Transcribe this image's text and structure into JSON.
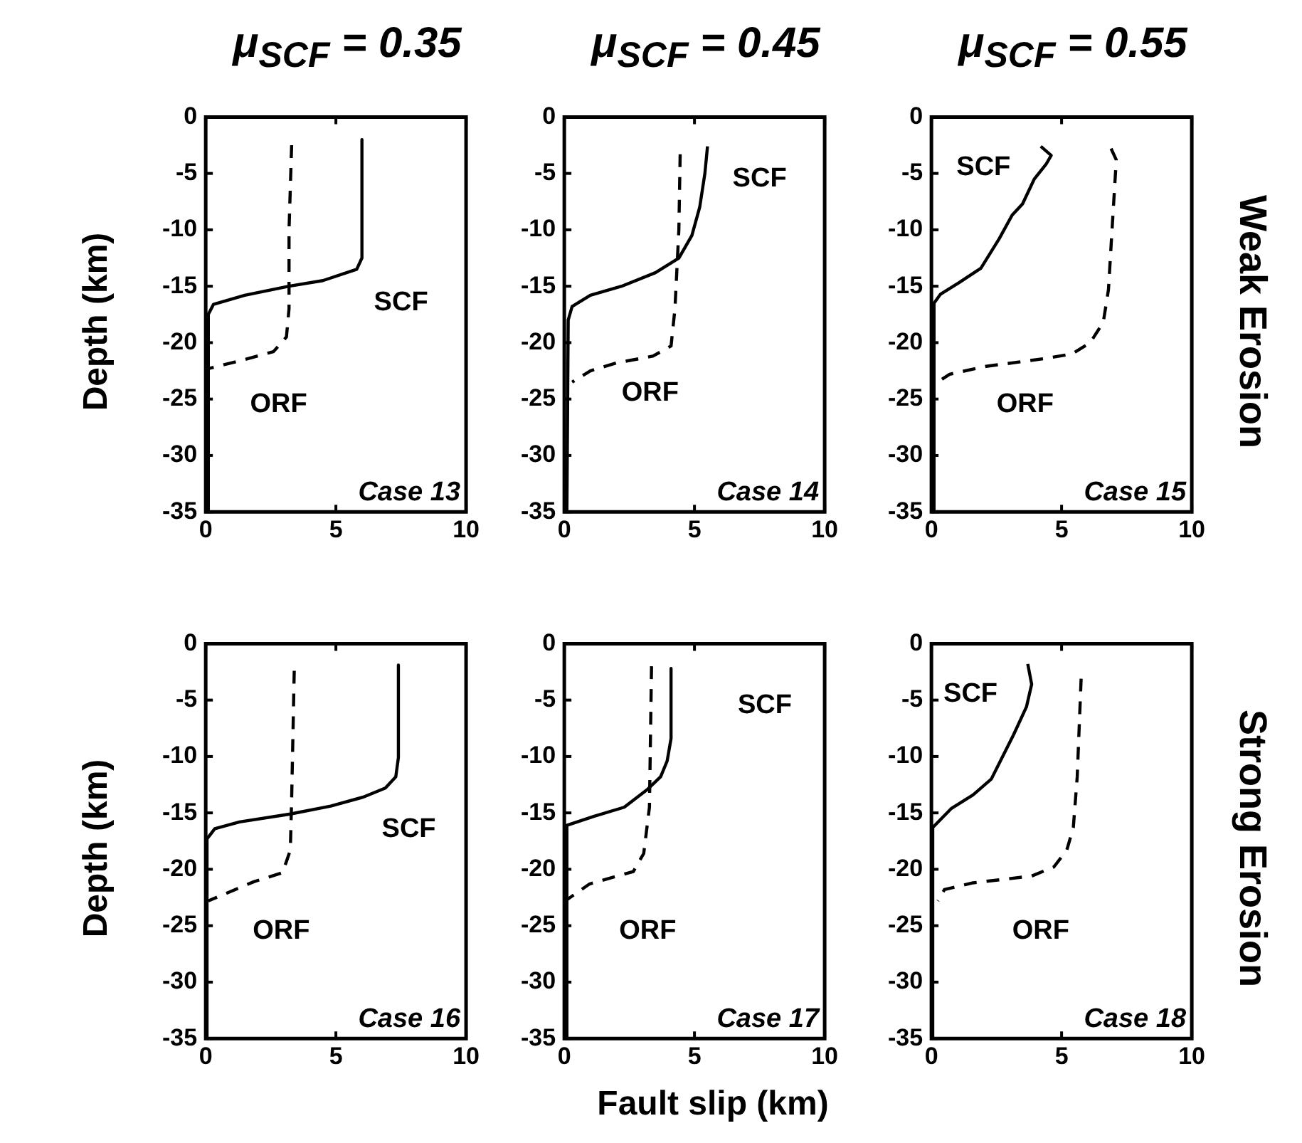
{
  "chart_data": [
    {
      "type": "line",
      "title": "μ$_{SCF}$ = 0.35",
      "ylabel": "Depth (km)",
      "annotations": [
        "Case 13"
      ],
      "marker": "none",
      "xlim": [
        0,
        10
      ],
      "ylim": [
        -35,
        0
      ],
      "xticks": [
        0,
        5,
        10
      ],
      "yticks": [
        -35,
        -30,
        -25,
        -20,
        -15,
        -10,
        -5,
        0
      ],
      "series": [
        {
          "name": "SCF",
          "color": "#000000",
          "line_style": "solid",
          "x": [
            6.0,
            6.0,
            5.8,
            4.5,
            3.2,
            1.5,
            0.3,
            0.1,
            0.1
          ],
          "values": [
            -2,
            -12.5,
            -13.5,
            -14.5,
            -15,
            -15.8,
            -16.6,
            -17.5,
            -35
          ]
        },
        {
          "name": "ORF",
          "color": "#000000",
          "line_style": "dashed",
          "x": [
            3.3,
            3.2,
            3.2,
            3.1,
            2.6,
            1.5,
            0.1
          ],
          "values": [
            -2.5,
            -10,
            -17,
            -19.5,
            -20.8,
            -21.5,
            -22.3
          ]
        }
      ]
    },
    {
      "type": "line",
      "title": "μ$_{SCF}$ = 0.45",
      "annotations": [
        "Case 14"
      ],
      "marker": "none",
      "xlim": [
        0,
        10
      ],
      "ylim": [
        -35,
        0
      ],
      "xticks": [
        0,
        5,
        10
      ],
      "yticks": [
        -35,
        -30,
        -25,
        -20,
        -15,
        -10,
        -5,
        0
      ],
      "series": [
        {
          "name": "SCF",
          "color": "#000000",
          "line_style": "solid",
          "x": [
            5.5,
            5.4,
            5.2,
            4.9,
            4.4,
            3.5,
            2.2,
            1,
            0.3,
            0.15,
            0.1
          ],
          "values": [
            -2.6,
            -5,
            -8,
            -10.5,
            -12.5,
            -13.8,
            -15,
            -15.8,
            -16.8,
            -18,
            -35
          ]
        },
        {
          "name": "ORF",
          "color": "#000000",
          "line_style": "dashed",
          "x": [
            4.45,
            4.4,
            4.25,
            4.1,
            3.4,
            2,
            1,
            0.3
          ],
          "values": [
            -3.3,
            -10,
            -17,
            -20.3,
            -21.2,
            -21.8,
            -22.5,
            -23.5
          ]
        }
      ]
    },
    {
      "type": "line",
      "title": "μ$_{SCF}$ = 0.55",
      "annotations": [
        "Case 15",
        "Weak Erosion"
      ],
      "marker": "none",
      "xlim": [
        0,
        10
      ],
      "ylim": [
        -35,
        0
      ],
      "xticks": [
        0,
        5,
        10
      ],
      "yticks": [
        -35,
        -30,
        -25,
        -20,
        -15,
        -10,
        -5,
        0
      ],
      "series": [
        {
          "name": "SCF",
          "color": "#000000",
          "line_style": "solid",
          "x": [
            4.2,
            4.6,
            4.4,
            3.95,
            3.5,
            3.1,
            2.6,
            1.9,
            1.05,
            0.35,
            0.1,
            0.1
          ],
          "values": [
            -2.6,
            -3.4,
            -4.2,
            -5.5,
            -7.7,
            -8.7,
            -10.8,
            -13.4,
            -14.7,
            -15.7,
            -16.5,
            -35
          ]
        },
        {
          "name": "ORF",
          "color": "#000000",
          "line_style": "dashed",
          "x": [
            6.9,
            7.1,
            6.95,
            6.8,
            6.6,
            6.1,
            5.4,
            4.4,
            2.1,
            0.7,
            0.1
          ],
          "values": [
            -2.8,
            -3.8,
            -9.5,
            -15.3,
            -18.2,
            -20,
            -21,
            -21.4,
            -22.1,
            -22.8,
            -23.7
          ]
        }
      ]
    },
    {
      "type": "line",
      "ylabel": "Depth (km)",
      "annotations": [
        "Case 16"
      ],
      "marker": "none",
      "xlim": [
        0,
        10
      ],
      "ylim": [
        -35,
        0
      ],
      "xticks": [
        0,
        5,
        10
      ],
      "yticks": [
        -35,
        -30,
        -25,
        -20,
        -15,
        -10,
        -5,
        0
      ],
      "series": [
        {
          "name": "SCF",
          "color": "#000000",
          "line_style": "solid",
          "x": [
            7.4,
            7.4,
            7.3,
            6.9,
            6.05,
            4.8,
            3.25,
            1.3,
            0.35,
            0.05,
            0.05
          ],
          "values": [
            -1.9,
            -10.1,
            -11.8,
            -12.8,
            -13.6,
            -14.4,
            -15.1,
            -15.8,
            -16.4,
            -17.3,
            -35
          ]
        },
        {
          "name": "ORF",
          "color": "#000000",
          "line_style": "dashed",
          "x": [
            3.4,
            3.3,
            3.25,
            2.95,
            1.85,
            0.1
          ],
          "values": [
            -2.4,
            -13.8,
            -18.3,
            -20.3,
            -21.1,
            -22.8
          ]
        }
      ]
    },
    {
      "type": "line",
      "xlabel": "Fault slip (km)",
      "annotations": [
        "Case 17"
      ],
      "marker": "none",
      "xlim": [
        0,
        10
      ],
      "ylim": [
        -35,
        0
      ],
      "xticks": [
        0,
        5,
        10
      ],
      "yticks": [
        -35,
        -30,
        -25,
        -20,
        -15,
        -10,
        -5,
        0
      ],
      "series": [
        {
          "name": "SCF",
          "color": "#000000",
          "line_style": "solid",
          "x": [
            4.1,
            4.1,
            3.95,
            3.7,
            3.2,
            2.3,
            1.15,
            0.1,
            0.1
          ],
          "values": [
            -2.2,
            -8.4,
            -10.4,
            -11.8,
            -12.9,
            -14.5,
            -15.3,
            -16.1,
            -35
          ]
        },
        {
          "name": "ORF",
          "color": "#000000",
          "line_style": "dashed",
          "x": [
            3.35,
            3.27,
            3.05,
            2.65,
            0.97,
            0.1
          ],
          "values": [
            -2,
            -14.5,
            -18.6,
            -20.2,
            -21.3,
            -22.7
          ]
        }
      ]
    },
    {
      "type": "line",
      "annotations": [
        "Case 18",
        "Strong Erosion"
      ],
      "marker": "none",
      "xlim": [
        0,
        10
      ],
      "ylim": [
        -35,
        0
      ],
      "xticks": [
        0,
        5,
        10
      ],
      "yticks": [
        -35,
        -30,
        -25,
        -20,
        -15,
        -10,
        -5,
        0
      ],
      "series": [
        {
          "name": "SCF",
          "color": "#000000",
          "line_style": "solid",
          "x": [
            3.7,
            3.85,
            3.65,
            3.15,
            2.8,
            2.3,
            1.6,
            0.77,
            0.05,
            0.05
          ],
          "values": [
            -1.8,
            -3.6,
            -5.6,
            -8.1,
            -9.7,
            -12,
            -13.4,
            -14.6,
            -16.3,
            -35
          ]
        },
        {
          "name": "ORF",
          "color": "#000000",
          "line_style": "dashed",
          "x": [
            5.75,
            5.6,
            5.45,
            5.2,
            4.7,
            3.85,
            1.6,
            0.5,
            0.25
          ],
          "values": [
            -3.1,
            -11.8,
            -16.3,
            -18.3,
            -19.8,
            -20.6,
            -21.2,
            -21.8,
            -22.8
          ]
        }
      ]
    }
  ]
}
